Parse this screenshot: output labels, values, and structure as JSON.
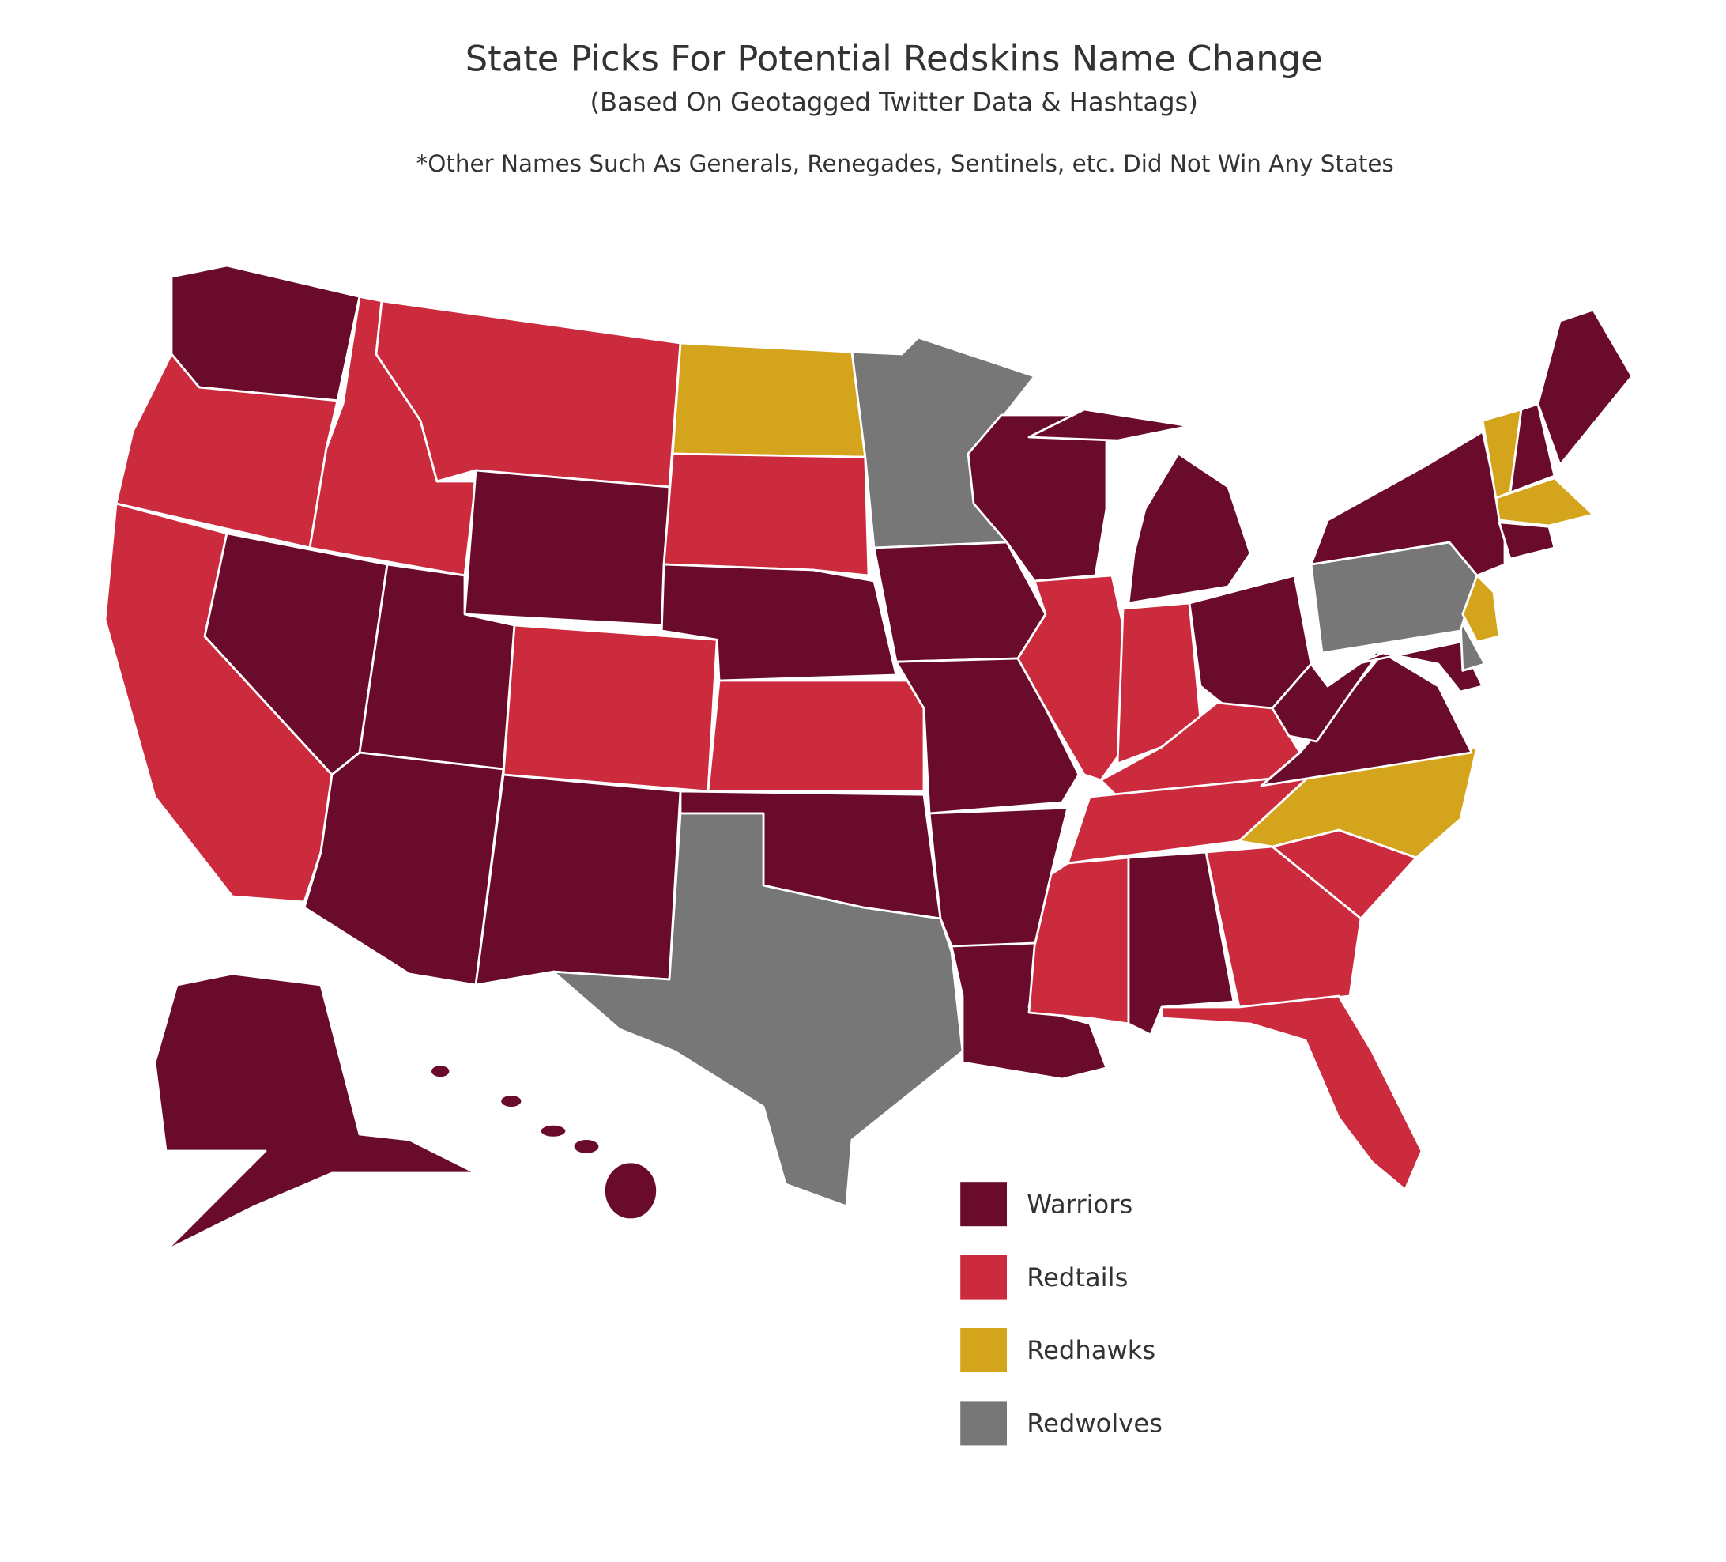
{
  "title": "State Picks For Potential Redskins Name Change",
  "subtitle": "(Based On Geotagged Twitter Data & Hashtags)",
  "note": "*Other Names Such As Generals, Renegades, Sentinels, etc. Did Not Win Any States",
  "legend": [
    {
      "name": "Warriors",
      "color": "#6a0b2c"
    },
    {
      "name": "Redtails",
      "color": "#cc2a3d"
    },
    {
      "name": "Redhawks",
      "color": "#d4a51c"
    },
    {
      "name": "Redwolves",
      "color": "#777777"
    }
  ]
}
